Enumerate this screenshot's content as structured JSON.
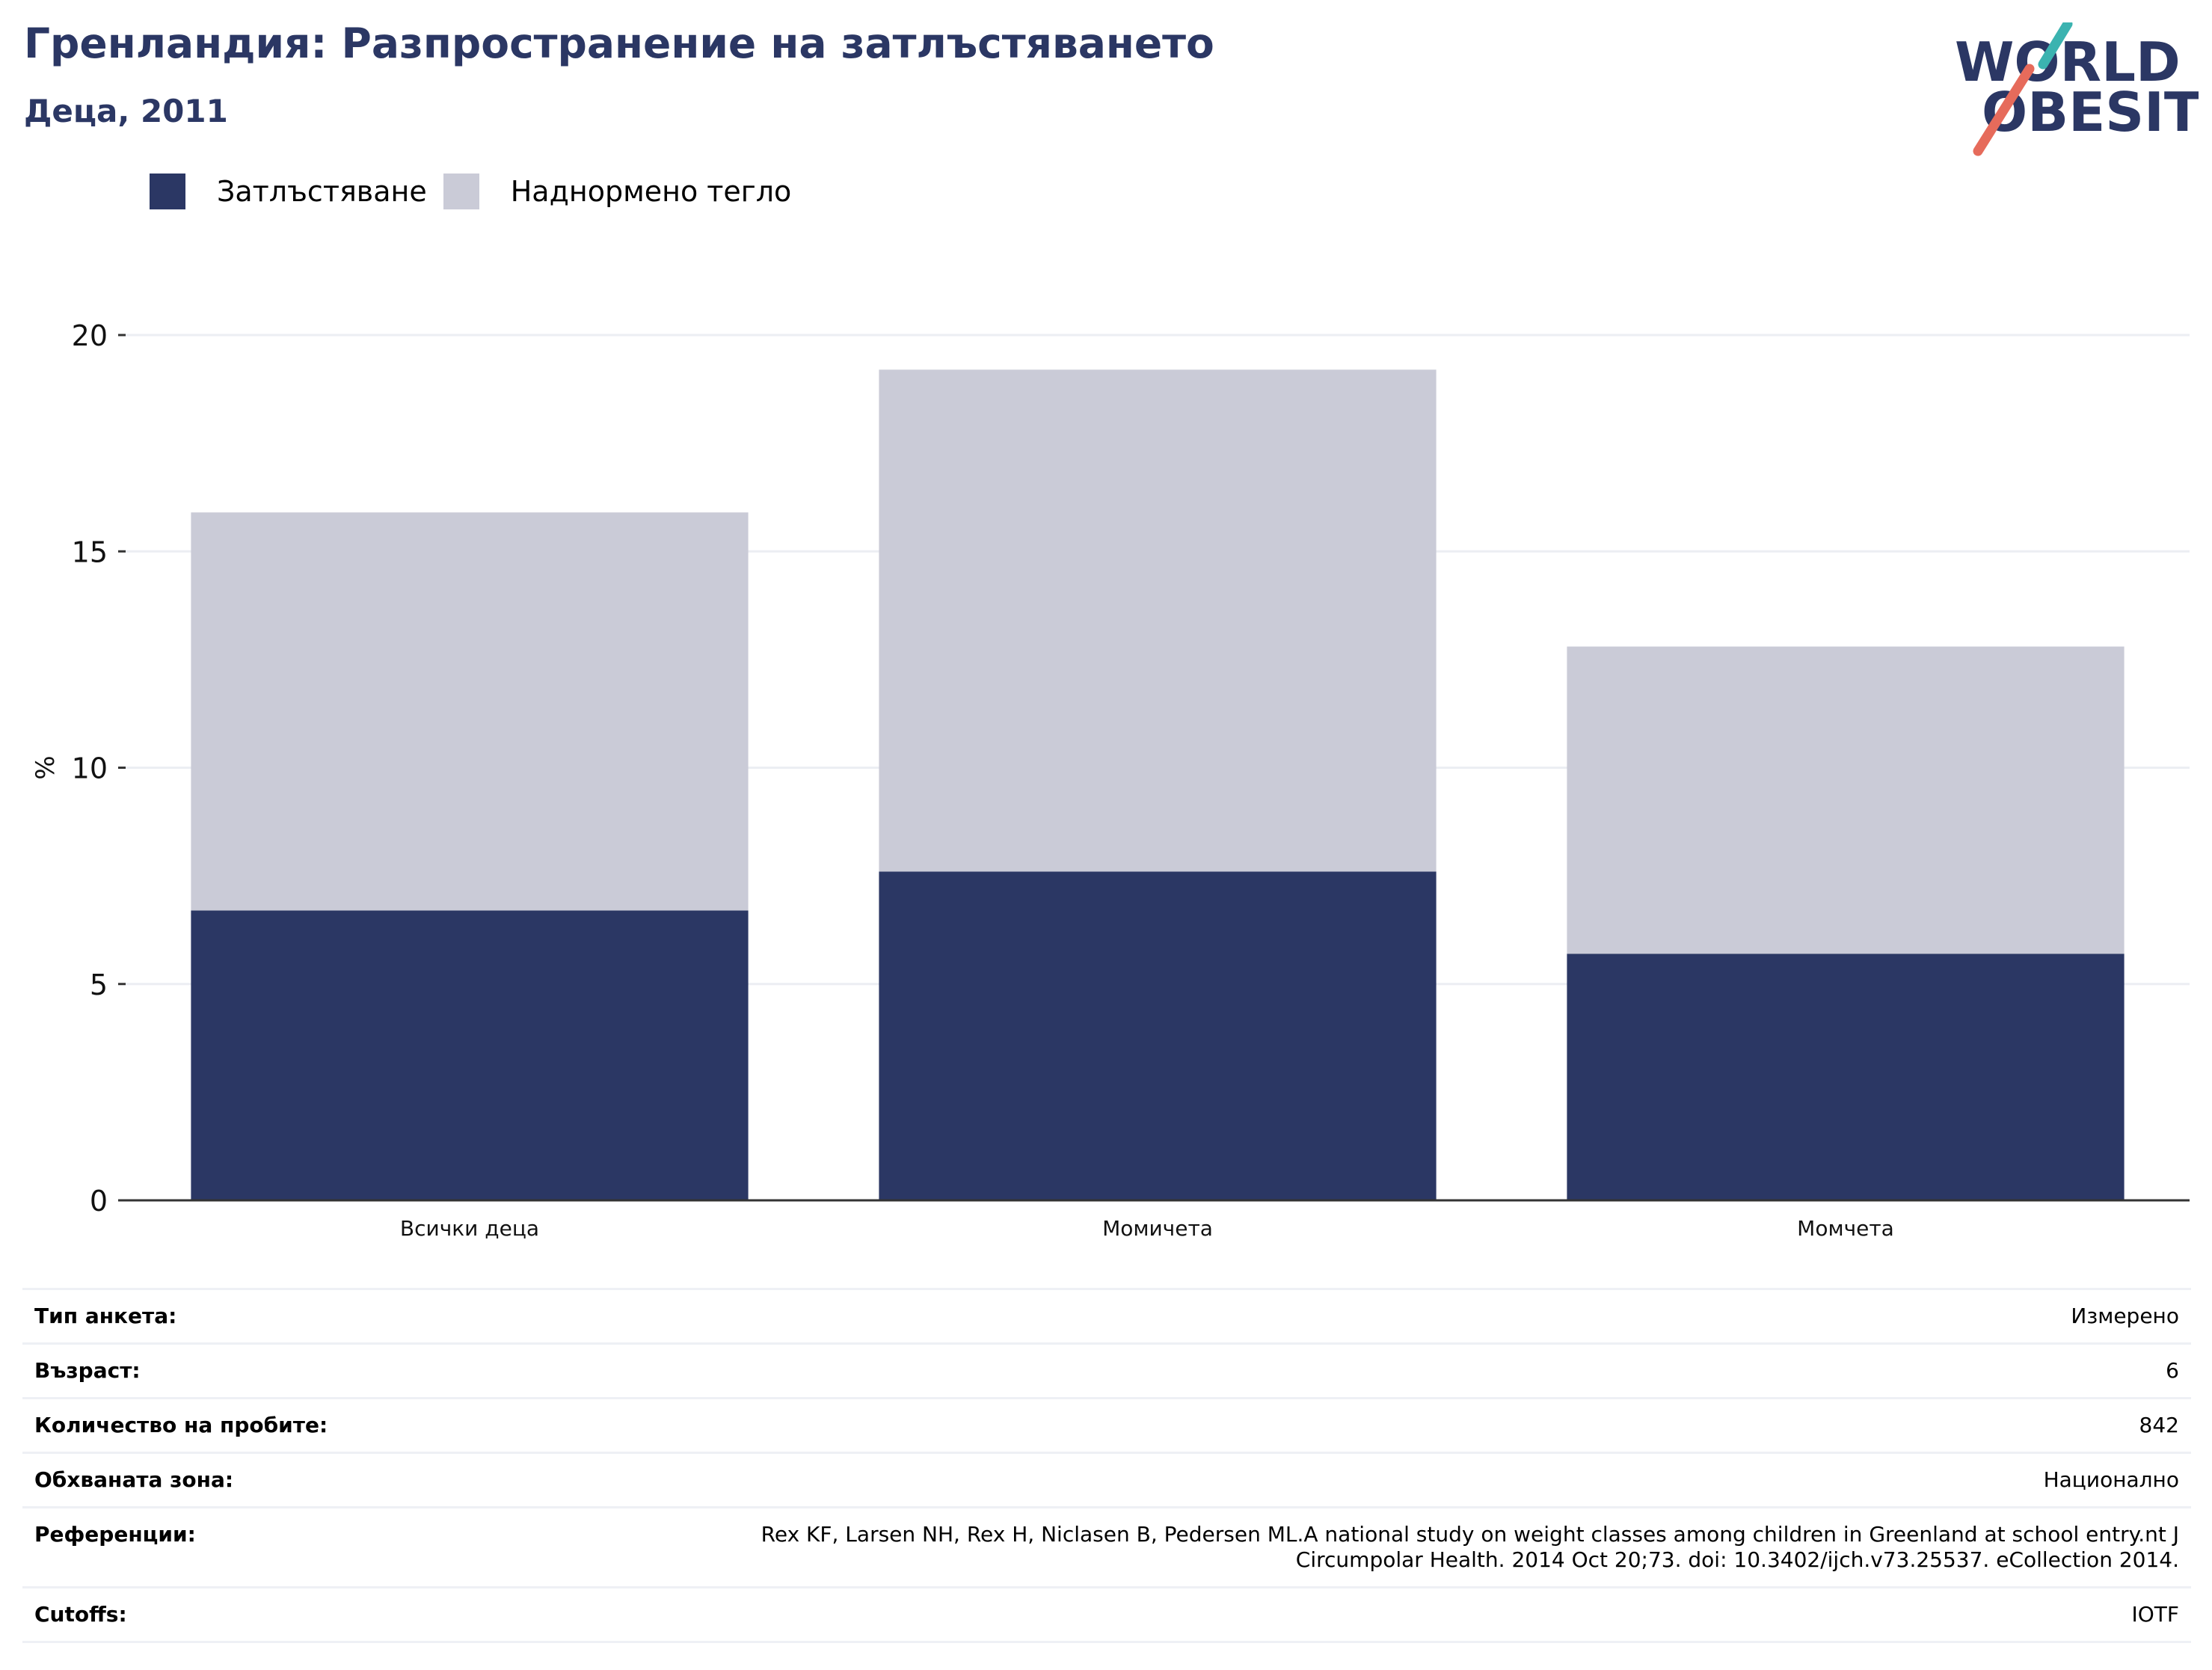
{
  "header": {
    "title": "Гренландия: Разпространение на затлъстяването",
    "subtitle": "Деца, 2011"
  },
  "logo": {
    "line1": "WORLD",
    "line2": "OBESITY",
    "colors": {
      "text": "#2b3764",
      "teal": "#3bb3b0",
      "coral": "#e66b5b"
    }
  },
  "colors": {
    "obesity": "#2b3764",
    "overweight": "#cacbd7",
    "grid": "#eceef3",
    "axis": "#333333"
  },
  "chart_data": {
    "type": "bar",
    "stacked": true,
    "categories": [
      "Всички деца",
      "Момичета",
      "Момчета"
    ],
    "series": [
      {
        "name": "Затлъстяване",
        "values": [
          6.7,
          7.6,
          5.7
        ]
      },
      {
        "name": "Наднормено тегло",
        "values": [
          9.2,
          11.6,
          7.1
        ]
      }
    ],
    "ylabel": "%",
    "ylim": [
      0,
      20
    ],
    "yticks": [
      0,
      5,
      10,
      15,
      20
    ],
    "grid": true,
    "legend": "top-left"
  },
  "info": [
    {
      "label": "Тип анкета:",
      "value": "Измерено"
    },
    {
      "label": "Възраст:",
      "value": "6"
    },
    {
      "label": "Количество на пробите:",
      "value": "842"
    },
    {
      "label": "Обхваната зона:",
      "value": "Национално"
    },
    {
      "label": "Референции:",
      "value": "Rex KF, Larsen NH, Rex H, Niclasen B, Pedersen ML.A national study on weight classes among children in Greenland at school entry.nt J Circumpolar Health. 2014 Oct 20;73. doi: 10.3402/ijch.v73.25537. eCollection 2014."
    },
    {
      "label": "Cutoffs:",
      "value": "IOTF"
    }
  ]
}
